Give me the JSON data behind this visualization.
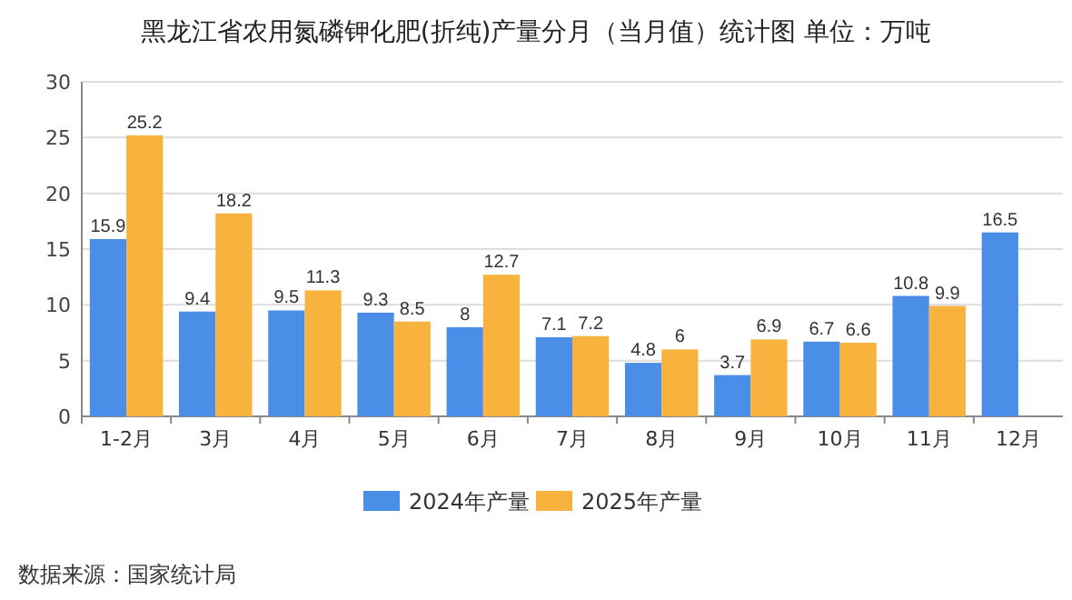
{
  "chart_data": {
    "type": "bar",
    "title": "黑龙江省农用氮磷钾化肥(折纯)产量分月（当月值）统计图 单位：万吨",
    "categories": [
      "1-2月",
      "3月",
      "4月",
      "5月",
      "6月",
      "7月",
      "8月",
      "9月",
      "10月",
      "11月",
      "12月"
    ],
    "series": [
      {
        "name": "2024年产量",
        "color": "#4a8ee8",
        "values": [
          15.9,
          9.4,
          9.5,
          9.3,
          8,
          7.1,
          4.8,
          3.7,
          6.7,
          10.8,
          16.5
        ]
      },
      {
        "name": "2025年产量",
        "color": "#f8b33f",
        "values": [
          25.2,
          18.2,
          11.3,
          8.5,
          12.7,
          7.2,
          6,
          6.9,
          6.6,
          9.9,
          null
        ]
      }
    ],
    "ylim": [
      0,
      30
    ],
    "yticks": [
      0,
      5,
      10,
      15,
      20,
      25,
      30
    ],
    "grid": "y",
    "legend": "bottom",
    "data_labels": true,
    "annotations": [
      "数据来源：国家统计局"
    ]
  }
}
